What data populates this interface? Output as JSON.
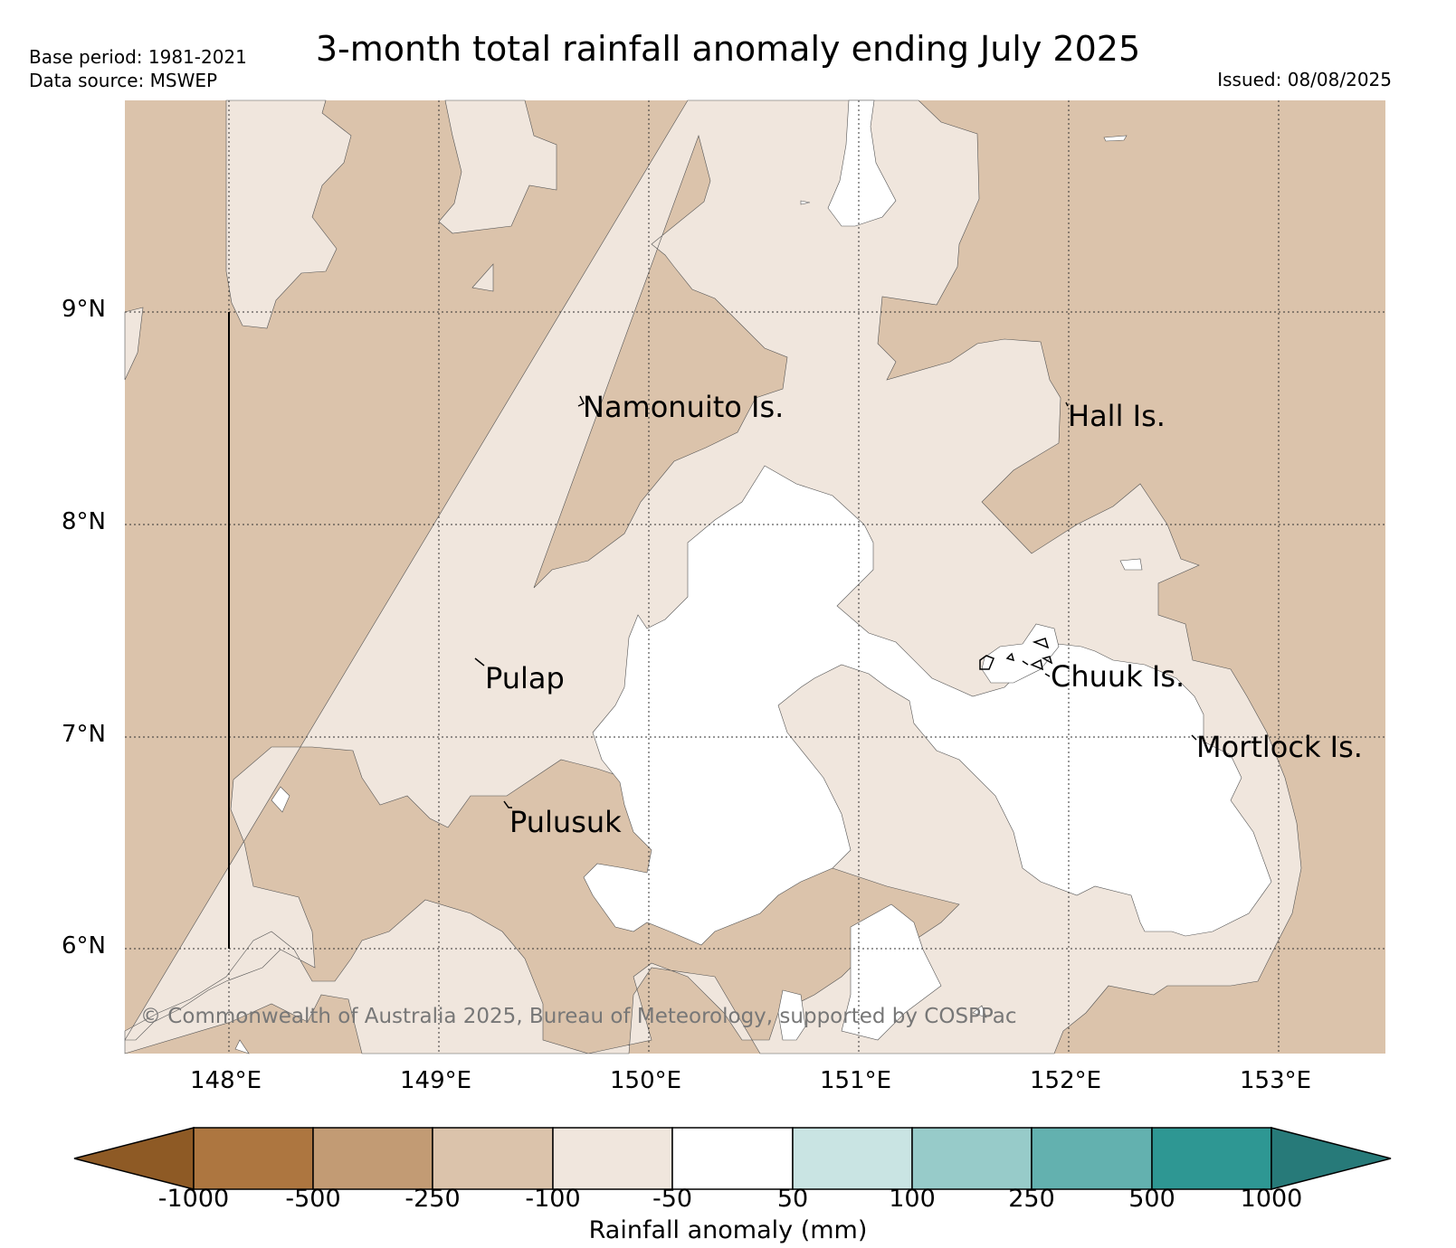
{
  "header": {
    "title": "3-month total rainfall anomaly ending July 2025",
    "base_period": "Base period: 1981-2021",
    "data_source": "Data source: MSWEP",
    "issued": "Issued: 08/08/2025"
  },
  "map": {
    "lat_labels": [
      "9°N",
      "8°N",
      "7°N",
      "6°N"
    ],
    "lon_labels": [
      "148°E",
      "149°E",
      "150°E",
      "151°E",
      "152°E",
      "153°E"
    ],
    "places": [
      "Namonuito Is.",
      "Hall Is.",
      "Pulap",
      "Chuuk Is.",
      "Mortlock Is.",
      "Pulusuk"
    ],
    "copyright": "© Commonwealth of Australia 2025, Bureau of Meteorology, supported by COSPPac",
    "legend_colors": {
      "-100 to -250": "#dbc3ab",
      "-50 to -100": "#f0e6dd",
      "-50 to 50": "#ffffff"
    }
  },
  "colorbar": {
    "title": "Rainfall anomaly (mm)",
    "ticks": [
      "-1000",
      "-500",
      "-250",
      "-100",
      "-50",
      "50",
      "100",
      "250",
      "500",
      "1000"
    ],
    "colors": [
      "#8e5a25",
      "#ad7640",
      "#c29b74",
      "#dbc3ab",
      "#f0e6dd",
      "#ffffff",
      "#c9e4e3",
      "#97cbc9",
      "#63b1af",
      "#2e9793",
      "#277a79"
    ]
  }
}
